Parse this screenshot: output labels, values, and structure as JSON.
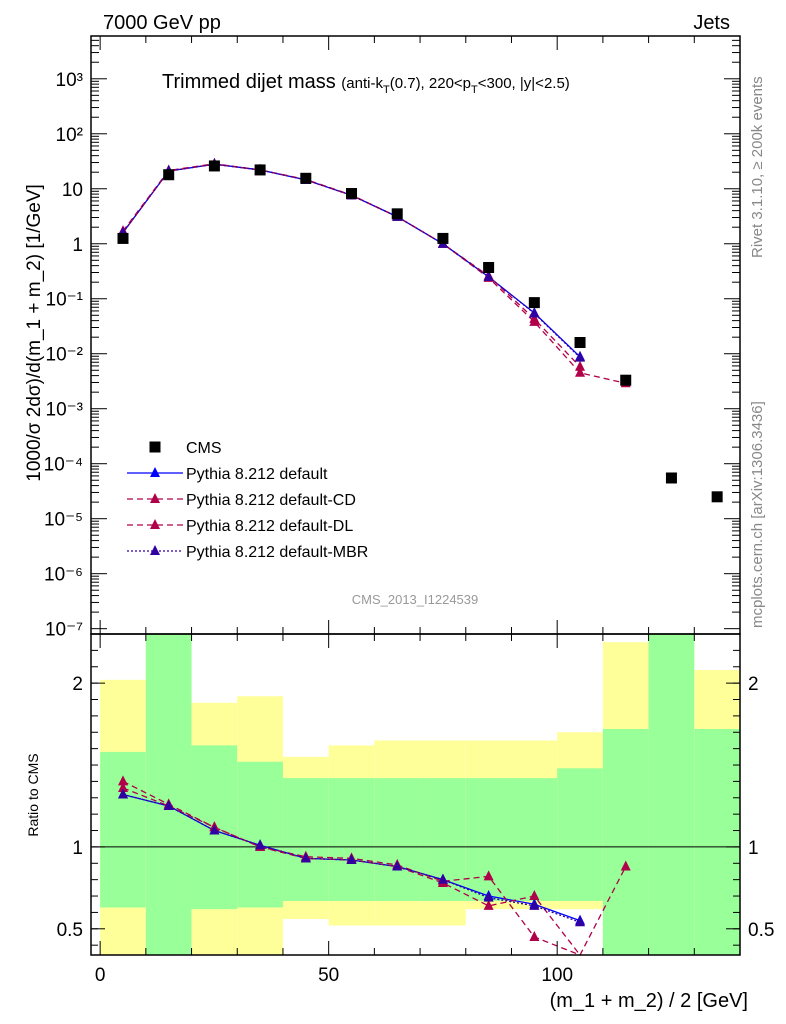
{
  "header": {
    "left": "7000 GeV pp",
    "right": "Jets",
    "side_top": "Rivet 3.1.10, ≥ 200k events",
    "side_bottom": "mcplots.cern.ch [arXiv:1306.3436]"
  },
  "main_title": {
    "main": "Trimmed dijet mass",
    "cuts": "(anti-k",
    "cuts_sub": "T",
    "cuts_mid": "(0.7), 220<p",
    "cuts_sub2": "T",
    "cuts_end": "<300, |y|<2.5)"
  },
  "watermark": "CMS_2013_I1224539",
  "colors": {
    "data": "#000000",
    "default": "#0000ff",
    "cd": "#b0004a",
    "dl": "#b0004a",
    "mbr": "#3000a0",
    "band_inner": "#99ff99",
    "band_outer": "#ffff99"
  },
  "chart_data": [
    {
      "type": "scatter",
      "panel": "main",
      "ylabel": "1000/σ 2dσ)/d(m_1 + m_2) [1/GeV]",
      "y_log": true,
      "xlim": [
        -2,
        140
      ],
      "ylim": [
        8e-08,
        6000
      ],
      "y_tick_labels": [
        "10⁻⁷",
        "10⁻⁶",
        "10⁻⁵",
        "10⁻⁴",
        "10⁻³",
        "10⁻²",
        "10⁻¹",
        "1",
        "10",
        "10²",
        "10³"
      ],
      "y_tick_values": [
        1e-07,
        1e-06,
        1e-05,
        0.0001,
        0.001,
        0.01,
        0.1,
        1,
        10,
        100,
        1000
      ],
      "legend": [
        "CMS",
        "Pythia 8.212 default",
        "Pythia 8.212 default-CD",
        "Pythia 8.212 default-DL",
        "Pythia 8.212 default-MBR"
      ],
      "legend_position": "bottom-left",
      "data": {
        "name": "CMS",
        "x": [
          5,
          15,
          25,
          35,
          45,
          55,
          65,
          75,
          85,
          95,
          105,
          115,
          125,
          135
        ],
        "y": [
          1.25,
          18,
          26,
          22,
          15.5,
          8.2,
          3.5,
          1.25,
          0.37,
          0.085,
          0.016,
          0.0033,
          5.5e-05,
          2.5e-05
        ]
      },
      "series": [
        {
          "name": "Pythia 8.212 default",
          "style": "solid",
          "x": [
            5,
            15,
            25,
            35,
            45,
            55,
            65,
            75,
            85,
            95,
            105
          ],
          "y": [
            1.6,
            21,
            28,
            22,
            14.5,
            7.6,
            3.1,
            1.0,
            0.25,
            0.055,
            0.0088
          ]
        },
        {
          "name": "Pythia 8.212 default-CD",
          "style": "dashed",
          "x": [
            5,
            15,
            25,
            35,
            45,
            55,
            65,
            75,
            85,
            95,
            105,
            115
          ],
          "y": [
            1.7,
            21.5,
            28.5,
            22,
            14.8,
            7.7,
            3.1,
            1.0,
            0.24,
            0.038,
            0.0045,
            0.0029
          ]
        },
        {
          "name": "Pythia 8.212 default-DL",
          "style": "dashed",
          "x": [
            5,
            15,
            25,
            35,
            45,
            55,
            65,
            75,
            85,
            95,
            105
          ],
          "y": [
            1.6,
            21,
            28,
            22,
            14.6,
            7.6,
            3.1,
            1.0,
            0.26,
            0.043,
            0.0058
          ]
        },
        {
          "name": "Pythia 8.212 default-MBR",
          "style": "dotted",
          "x": [
            5,
            15,
            25,
            35,
            45,
            55,
            65,
            75,
            85,
            95,
            105
          ],
          "y": [
            1.6,
            21,
            28,
            22,
            14.5,
            7.6,
            3.1,
            1.0,
            0.25,
            0.054,
            0.0085
          ]
        }
      ]
    },
    {
      "type": "line",
      "panel": "ratio",
      "ylabel": "Ratio to CMS",
      "xlabel": "(m_1 + m_2) / 2 [GeV]",
      "xlim": [
        -2,
        140
      ],
      "ylim": [
        0.34,
        2.3
      ],
      "y_tick_labels": [
        "0.5",
        "1",
        "2"
      ],
      "y_tick_values": [
        0.5,
        1,
        2
      ],
      "x_tick_labels": [
        "0",
        "50",
        "100"
      ],
      "x_tick_values": [
        0,
        50,
        100
      ],
      "reference": 1,
      "bands": {
        "x_edges": [
          0,
          10,
          20,
          30,
          40,
          50,
          60,
          70,
          80,
          90,
          100,
          110,
          120,
          130,
          140
        ],
        "inner_hi": [
          1.58,
          2.3,
          1.62,
          1.52,
          1.42,
          1.42,
          1.42,
          1.42,
          1.42,
          1.42,
          1.48,
          1.72,
          2.3,
          1.72
        ],
        "inner_lo": [
          0.63,
          0.34,
          0.62,
          0.63,
          0.67,
          0.67,
          0.67,
          0.67,
          0.67,
          0.67,
          0.67,
          0.34,
          0.34,
          0.34
        ],
        "outer_hi": [
          2.02,
          2.3,
          1.88,
          1.92,
          1.55,
          1.62,
          1.65,
          1.65,
          1.65,
          1.65,
          1.7,
          2.25,
          2.3,
          2.08
        ],
        "outer_lo": [
          0.34,
          0.34,
          0.34,
          0.34,
          0.56,
          0.52,
          0.52,
          0.52,
          0.62,
          0.62,
          0.62,
          0.34,
          0.34,
          0.34
        ]
      },
      "series": [
        {
          "name": "Pythia 8.212 default",
          "x": [
            5,
            15,
            25,
            35,
            45,
            55,
            65,
            75,
            85,
            95,
            105
          ],
          "y": [
            1.32,
            1.25,
            1.1,
            1.01,
            0.93,
            0.92,
            0.88,
            0.8,
            0.7,
            0.65,
            0.55
          ]
        },
        {
          "name": "Pythia 8.212 default-CD",
          "x": [
            5,
            15,
            25,
            35,
            45,
            55,
            65,
            75,
            85,
            95,
            105,
            115
          ],
          "y": [
            1.4,
            1.26,
            1.12,
            1.0,
            0.94,
            0.93,
            0.89,
            0.79,
            0.82,
            0.45,
            0.28,
            0.88
          ]
        },
        {
          "name": "Pythia 8.212 default-DL",
          "x": [
            5,
            15,
            25,
            35,
            45,
            55,
            65,
            75,
            85,
            95,
            105
          ],
          "y": [
            1.36,
            1.25,
            1.12,
            1.0,
            0.93,
            0.92,
            0.88,
            0.78,
            0.64,
            0.7,
            0.3
          ]
        },
        {
          "name": "Pythia 8.212 default-MBR",
          "x": [
            5,
            15,
            25,
            35,
            45,
            55,
            65,
            75,
            85,
            95,
            105
          ],
          "y": [
            1.32,
            1.25,
            1.1,
            1.01,
            0.93,
            0.92,
            0.88,
            0.8,
            0.69,
            0.64,
            0.54
          ]
        }
      ]
    }
  ]
}
